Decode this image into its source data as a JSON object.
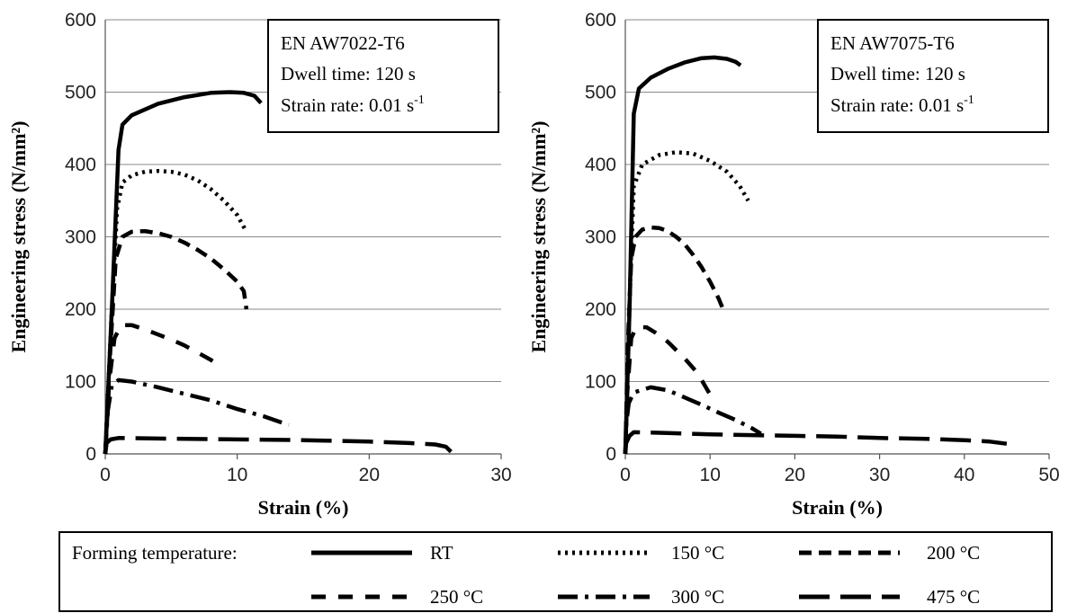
{
  "chart_data": [
    {
      "type": "line",
      "xlabel": "Strain (%)",
      "ylabel": "Engineering stress (N/mm²)",
      "xlim": [
        0,
        30
      ],
      "ylim": [
        0,
        600
      ],
      "xticks": [
        "0",
        "10",
        "20",
        "30"
      ],
      "yticks": [
        "0",
        "100",
        "200",
        "300",
        "400",
        "500",
        "600"
      ],
      "grid": "horizontal",
      "annotation": {
        "line1": "EN AW7022-T6",
        "line2": "Dwell time: 120 s",
        "line3_text": "Strain rate: 0.01 s",
        "line3_sup": "-1"
      },
      "series": [
        {
          "name": "RT",
          "points": [
            [
              0,
              0
            ],
            [
              0.5,
              200
            ],
            [
              1.0,
              420
            ],
            [
              1.3,
              455
            ],
            [
              2,
              468
            ],
            [
              4,
              484
            ],
            [
              6,
              493
            ],
            [
              8,
              499
            ],
            [
              9.5,
              500
            ],
            [
              10.5,
              499
            ],
            [
              11.3,
              495
            ],
            [
              11.8,
              485
            ]
          ]
        },
        {
          "name": "150 °C",
          "points": [
            [
              0,
              0
            ],
            [
              0.5,
              200
            ],
            [
              0.9,
              340
            ],
            [
              1.3,
              375
            ],
            [
              2,
              385
            ],
            [
              3,
              390
            ],
            [
              4,
              391
            ],
            [
              5,
              390
            ],
            [
              6,
              386
            ],
            [
              7,
              378
            ],
            [
              8,
              366
            ],
            [
              9,
              350
            ],
            [
              10,
              330
            ],
            [
              10.6,
              310
            ]
          ]
        },
        {
          "name": "200 °C",
          "points": [
            [
              0,
              0
            ],
            [
              0.4,
              150
            ],
            [
              0.8,
              270
            ],
            [
              1.3,
              300
            ],
            [
              2,
              307
            ],
            [
              3,
              308
            ],
            [
              4,
              305
            ],
            [
              5,
              300
            ],
            [
              6,
              292
            ],
            [
              7,
              282
            ],
            [
              8,
              270
            ],
            [
              9,
              255
            ],
            [
              10,
              238
            ],
            [
              10.5,
              225
            ],
            [
              10.7,
              200
            ]
          ]
        },
        {
          "name": "250 °C",
          "points": [
            [
              0,
              0
            ],
            [
              0.3,
              100
            ],
            [
              0.7,
              160
            ],
            [
              1.2,
              178
            ],
            [
              2,
              178
            ],
            [
              3,
              172
            ],
            [
              4,
              165
            ],
            [
              5,
              158
            ],
            [
              6,
              150
            ],
            [
              7,
              140
            ],
            [
              8,
              130
            ],
            [
              8.8,
              120
            ]
          ]
        },
        {
          "name": "300 °C",
          "points": [
            [
              0,
              0
            ],
            [
              0.2,
              60
            ],
            [
              0.5,
              95
            ],
            [
              1,
              102
            ],
            [
              2,
              100
            ],
            [
              4,
              92
            ],
            [
              6,
              83
            ],
            [
              8,
              74
            ],
            [
              10,
              62
            ],
            [
              12,
              52
            ],
            [
              13.9,
              40
            ]
          ]
        },
        {
          "name": "475 °C",
          "points": [
            [
              0,
              0
            ],
            [
              0.1,
              15
            ],
            [
              0.4,
              20
            ],
            [
              1,
              22
            ],
            [
              5,
              21
            ],
            [
              10,
              20
            ],
            [
              15,
              19
            ],
            [
              20,
              17
            ],
            [
              23,
              15
            ],
            [
              25,
              13
            ],
            [
              25.8,
              10
            ],
            [
              26.2,
              3
            ]
          ]
        }
      ]
    },
    {
      "type": "line",
      "xlabel": "Strain (%)",
      "ylabel": "Engineering stress (N/mm²)",
      "xlim": [
        0,
        50
      ],
      "ylim": [
        0,
        600
      ],
      "xticks": [
        "0",
        "10",
        "20",
        "30",
        "40",
        "50"
      ],
      "yticks": [
        "0",
        "100",
        "200",
        "300",
        "400",
        "500",
        "600"
      ],
      "grid": "horizontal",
      "annotation": {
        "line1": "EN AW7075-T6",
        "line2": "Dwell time: 120 s",
        "line3_text": "Strain rate: 0.01 s",
        "line3_sup": "-1"
      },
      "series": [
        {
          "name": "RT",
          "points": [
            [
              0,
              0
            ],
            [
              0.5,
              200
            ],
            [
              1,
              470
            ],
            [
              1.6,
              505
            ],
            [
              3,
              520
            ],
            [
              5,
              532
            ],
            [
              7,
              541
            ],
            [
              9,
              547
            ],
            [
              10.5,
              548
            ],
            [
              12,
              546
            ],
            [
              13,
              542
            ],
            [
              13.6,
              537
            ]
          ]
        },
        {
          "name": "150 °C",
          "points": [
            [
              0,
              0
            ],
            [
              0.6,
              250
            ],
            [
              1,
              370
            ],
            [
              2,
              400
            ],
            [
              4,
              413
            ],
            [
              6,
              417
            ],
            [
              8,
              415
            ],
            [
              10,
              405
            ],
            [
              12,
              390
            ],
            [
              13.5,
              370
            ],
            [
              14.5,
              350
            ]
          ]
        },
        {
          "name": "200 °C",
          "points": [
            [
              0,
              0
            ],
            [
              0.3,
              150
            ],
            [
              0.7,
              270
            ],
            [
              1.2,
              300
            ],
            [
              2,
              310
            ],
            [
              3,
              313
            ],
            [
              4,
              312
            ],
            [
              5,
              308
            ],
            [
              6,
              300
            ],
            [
              7,
              290
            ],
            [
              8,
              275
            ],
            [
              9,
              258
            ],
            [
              10,
              238
            ],
            [
              11,
              215
            ],
            [
              11.6,
              198
            ]
          ]
        },
        {
          "name": "250 °C",
          "points": [
            [
              0,
              0
            ],
            [
              0.2,
              80
            ],
            [
              0.7,
              160
            ],
            [
              1.3,
              175
            ],
            [
              2.5,
              175
            ],
            [
              3.5,
              168
            ],
            [
              5,
              155
            ],
            [
              7,
              132
            ],
            [
              8.5,
              112
            ],
            [
              9.5,
              92
            ],
            [
              10.5,
              72
            ]
          ]
        },
        {
          "name": "300 °C",
          "points": [
            [
              0,
              0
            ],
            [
              0.1,
              40
            ],
            [
              0.4,
              70
            ],
            [
              1,
              85
            ],
            [
              3,
              92
            ],
            [
              5,
              88
            ],
            [
              7,
              78
            ],
            [
              9,
              68
            ],
            [
              11,
              57
            ],
            [
              13,
              47
            ],
            [
              15,
              35
            ],
            [
              16,
              28
            ]
          ]
        },
        {
          "name": "475 °C",
          "points": [
            [
              0,
              0
            ],
            [
              0.1,
              15
            ],
            [
              0.5,
              25
            ],
            [
              1,
              30
            ],
            [
              5,
              29
            ],
            [
              10,
              27
            ],
            [
              15,
              26
            ],
            [
              20,
              25
            ],
            [
              25,
              24
            ],
            [
              30,
              22
            ],
            [
              35,
              21
            ],
            [
              40,
              19
            ],
            [
              43,
              17
            ],
            [
              45,
              14
            ]
          ]
        }
      ]
    }
  ],
  "legend": {
    "title": "Forming temperature:",
    "items": [
      "RT",
      "150 °C",
      "200 °C",
      "250 °C",
      "300 °C",
      "475 °C"
    ]
  }
}
